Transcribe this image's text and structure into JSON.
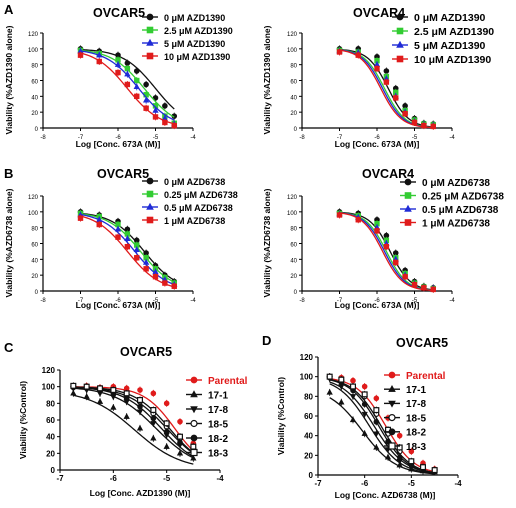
{
  "panels": [
    {
      "letter": "A",
      "charts": [
        0,
        1
      ]
    },
    {
      "letter": "B",
      "charts": [
        2,
        3
      ]
    },
    {
      "letter": "C",
      "charts": [
        4
      ]
    },
    {
      "letter": "D",
      "charts": [
        5
      ]
    }
  ],
  "colors": {
    "black": "#111111",
    "green": "#33cc33",
    "blue": "#1f2bd6",
    "red": "#e01b1b",
    "darkred": "#c0392b"
  },
  "chart_data": [
    {
      "type": "scatter",
      "panel": "A",
      "title": "OVCAR5",
      "xlabel": "Log [Conc. 673A (M)]",
      "ylabel": "Viability (%AZD1390 alone)",
      "xlim": [
        -8,
        -4
      ],
      "ylim": [
        0,
        120
      ],
      "xticks": [
        -8,
        -7,
        -6,
        -5,
        -4
      ],
      "yticks": [
        0,
        20,
        40,
        60,
        80,
        100,
        120
      ],
      "x": [
        -7,
        -6.5,
        -6,
        -5.75,
        -5.5,
        -5.25,
        -5,
        -4.75,
        -4.5
      ],
      "series": [
        {
          "name": "0 μM AZD1390",
          "color": "#111111",
          "marker": "circle",
          "ec50": -5.0,
          "hill": 1.0,
          "top": 100,
          "values": [
            100,
            97,
            92,
            82,
            72,
            55,
            38,
            28,
            15
          ]
        },
        {
          "name": "2.5 μM AZD1390",
          "color": "#33cc33",
          "marker": "square",
          "ec50": -5.3,
          "hill": 1.0,
          "top": 100,
          "values": [
            98,
            94,
            86,
            75,
            60,
            42,
            28,
            15,
            6
          ]
        },
        {
          "name": "5 μM AZD1390",
          "color": "#1f2bd6",
          "marker": "triangle",
          "ec50": -5.45,
          "hill": 1.0,
          "top": 100,
          "values": [
            97,
            92,
            80,
            68,
            52,
            35,
            22,
            12,
            5
          ]
        },
        {
          "name": "10 μM AZD1390",
          "color": "#e01b1b",
          "marker": "square",
          "ec50": -5.75,
          "hill": 1.0,
          "top": 100,
          "values": [
            92,
            84,
            70,
            55,
            40,
            25,
            14,
            7,
            3
          ]
        }
      ]
    },
    {
      "type": "scatter",
      "panel": "A",
      "title": "OVCAR4",
      "xlabel": "Log [Conc. 673A (M)]",
      "ylabel": "Viability (%AZD1390 alone)",
      "xlim": [
        -8,
        -4
      ],
      "ylim": [
        0,
        120
      ],
      "xticks": [
        -8,
        -7,
        -6,
        -5,
        -4
      ],
      "yticks": [
        0,
        20,
        40,
        60,
        80,
        100,
        120
      ],
      "x": [
        -7,
        -6.5,
        -6,
        -5.75,
        -5.5,
        -5.25,
        -5,
        -4.75,
        -4.5
      ],
      "series": [
        {
          "name": "0 μM AZD1390",
          "color": "#111111",
          "marker": "circle",
          "ec50": -5.7,
          "hill": 1.6,
          "top": 100,
          "values": [
            100,
            100,
            90,
            72,
            50,
            28,
            12,
            6,
            5
          ]
        },
        {
          "name": "2.5 μM AZD1390",
          "color": "#33cc33",
          "marker": "square",
          "ec50": -5.8,
          "hill": 1.6,
          "top": 100,
          "values": [
            98,
            96,
            85,
            65,
            45,
            22,
            10,
            5,
            4
          ]
        },
        {
          "name": "5 μM AZD1390",
          "color": "#1f2bd6",
          "marker": "triangle",
          "ec50": -5.85,
          "hill": 1.6,
          "top": 100,
          "values": [
            97,
            95,
            80,
            62,
            40,
            20,
            8,
            4,
            3
          ]
        },
        {
          "name": "10 μM AZD1390",
          "color": "#e01b1b",
          "marker": "square",
          "ec50": -5.9,
          "hill": 1.6,
          "top": 100,
          "values": [
            96,
            92,
            75,
            58,
            38,
            18,
            7,
            3,
            2
          ]
        }
      ]
    },
    {
      "type": "scatter",
      "panel": "B",
      "title": "OVCAR5",
      "xlabel": "Log [Conc. 673A (M)]",
      "ylabel": "Viability (%AZD6738 alone)",
      "xlim": [
        -8,
        -4
      ],
      "ylim": [
        0,
        120
      ],
      "xticks": [
        -8,
        -7,
        -6,
        -5,
        -4
      ],
      "yticks": [
        0,
        20,
        40,
        60,
        80,
        100,
        120
      ],
      "x": [
        -7,
        -6.5,
        -6,
        -5.75,
        -5.5,
        -5.25,
        -5,
        -4.75,
        -4.5
      ],
      "series": [
        {
          "name": "0 μM AZD6738",
          "color": "#111111",
          "marker": "circle",
          "ec50": -5.3,
          "hill": 1.0,
          "top": 100,
          "values": [
            100,
            96,
            88,
            78,
            64,
            48,
            32,
            20,
            12
          ]
        },
        {
          "name": "0.25 μM AZD6738",
          "color": "#33cc33",
          "marker": "square",
          "ec50": -5.4,
          "hill": 1.0,
          "top": 100,
          "values": [
            98,
            94,
            84,
            72,
            58,
            42,
            28,
            17,
            10
          ]
        },
        {
          "name": "0.5 μM AZD6738",
          "color": "#1f2bd6",
          "marker": "triangle",
          "ec50": -5.55,
          "hill": 1.0,
          "top": 100,
          "values": [
            96,
            90,
            78,
            66,
            52,
            36,
            24,
            14,
            8
          ]
        },
        {
          "name": "1 μM AZD6738",
          "color": "#e01b1b",
          "marker": "square",
          "ec50": -5.75,
          "hill": 1.0,
          "top": 100,
          "values": [
            92,
            84,
            68,
            56,
            42,
            28,
            18,
            10,
            6
          ]
        }
      ]
    },
    {
      "type": "scatter",
      "panel": "B",
      "title": "OVCAR4",
      "xlabel": "Log [Conc. 673A (M)]",
      "ylabel": "Viability (%AZD6738 alone)",
      "xlim": [
        -8,
        -4
      ],
      "ylim": [
        0,
        120
      ],
      "xticks": [
        -8,
        -7,
        -6,
        -5,
        -4
      ],
      "yticks": [
        0,
        20,
        40,
        60,
        80,
        100,
        120
      ],
      "x": [
        -7,
        -6.5,
        -6,
        -5.75,
        -5.5,
        -5.25,
        -5,
        -4.75,
        -4.5
      ],
      "series": [
        {
          "name": "0 μM AZD6738",
          "color": "#111111",
          "marker": "circle",
          "ec50": -5.65,
          "hill": 1.6,
          "top": 100,
          "values": [
            100,
            98,
            90,
            70,
            48,
            26,
            12,
            6,
            4
          ]
        },
        {
          "name": "0.25 μM AZD6738",
          "color": "#33cc33",
          "marker": "square",
          "ec50": -5.75,
          "hill": 1.6,
          "top": 100,
          "values": [
            98,
            95,
            85,
            64,
            42,
            22,
            10,
            5,
            3
          ]
        },
        {
          "name": "0.5 μM AZD6738",
          "color": "#1f2bd6",
          "marker": "triangle",
          "ec50": -5.8,
          "hill": 1.6,
          "top": 100,
          "values": [
            97,
            93,
            80,
            60,
            40,
            20,
            9,
            4,
            3
          ]
        },
        {
          "name": "1 μM AZD6738",
          "color": "#e01b1b",
          "marker": "square",
          "ec50": -5.85,
          "hill": 1.6,
          "top": 100,
          "values": [
            96,
            90,
            76,
            56,
            36,
            18,
            8,
            4,
            2
          ]
        }
      ]
    },
    {
      "type": "scatter",
      "panel": "C",
      "title": "OVCAR5",
      "xlabel": "Log [Conc. AZD1390 (M)]",
      "ylabel": "Viability (%Control)",
      "xlim": [
        -7,
        -4
      ],
      "ylim": [
        0,
        120
      ],
      "xticks": [
        -7,
        -6,
        -5,
        -4
      ],
      "yticks": [
        0,
        20,
        40,
        60,
        80,
        100,
        120
      ],
      "x": [
        -6.75,
        -6.5,
        -6.25,
        -6,
        -5.75,
        -5.5,
        -5.25,
        -5,
        -4.75,
        -4.5
      ],
      "series": [
        {
          "name": "Parental",
          "color": "#e01b1b",
          "marker": "circle",
          "ec50": -4.85,
          "hill": 1.5,
          "top": 100,
          "values": [
            100,
            101,
            99,
            100,
            98,
            96,
            92,
            80,
            58,
            32
          ]
        },
        {
          "name": "17-1",
          "color": "#111111",
          "marker": "triangle",
          "ec50": -5.6,
          "hill": 1.0,
          "top": 96,
          "values": [
            92,
            88,
            82,
            75,
            64,
            50,
            38,
            28,
            20,
            14
          ]
        },
        {
          "name": "17-8",
          "color": "#111111",
          "marker": "triangle-down",
          "ec50": -5.2,
          "hill": 1.1,
          "top": 100,
          "values": [
            98,
            96,
            92,
            88,
            82,
            70,
            56,
            42,
            30,
            22
          ]
        },
        {
          "name": "18-5",
          "color": "#111111",
          "marker": "circle-open",
          "ec50": -5.0,
          "hill": 1.2,
          "top": 100,
          "values": [
            100,
            99,
            97,
            95,
            90,
            82,
            68,
            52,
            38,
            26
          ]
        },
        {
          "name": "18-2",
          "color": "#111111",
          "marker": "circle",
          "ec50": -5.1,
          "hill": 1.2,
          "top": 100,
          "values": [
            99,
            98,
            95,
            92,
            86,
            76,
            62,
            46,
            33,
            24
          ]
        },
        {
          "name": "18-3",
          "color": "#111111",
          "marker": "square-open",
          "ec50": -4.95,
          "hill": 1.3,
          "top": 100,
          "values": [
            101,
            100,
            98,
            96,
            92,
            84,
            72,
            56,
            40,
            28
          ]
        }
      ]
    },
    {
      "type": "scatter",
      "panel": "D",
      "title": "OVCAR5",
      "xlabel": "Log [Conc. AZD6738 (M)]",
      "ylabel": "Viability (%Control)",
      "xlim": [
        -7,
        -4
      ],
      "ylim": [
        0,
        120
      ],
      "xticks": [
        -7,
        -6,
        -5,
        -4
      ],
      "yticks": [
        0,
        20,
        40,
        60,
        80,
        100,
        120
      ],
      "x": [
        -6.75,
        -6.5,
        -6.25,
        -6,
        -5.75,
        -5.5,
        -5.25,
        -5,
        -4.75,
        -4.5
      ],
      "series": [
        {
          "name": "Parental",
          "color": "#e01b1b",
          "marker": "circle",
          "ec50": -5.55,
          "hill": 1.4,
          "top": 100,
          "values": [
            100,
            99,
            96,
            90,
            78,
            58,
            40,
            24,
            12,
            6
          ]
        },
        {
          "name": "17-1",
          "color": "#111111",
          "marker": "triangle",
          "ec50": -6.05,
          "hill": 1.2,
          "top": 90,
          "values": [
            84,
            74,
            56,
            42,
            28,
            18,
            10,
            6,
            4,
            3
          ]
        },
        {
          "name": "17-8",
          "color": "#111111",
          "marker": "triangle-down",
          "ec50": -5.9,
          "hill": 1.3,
          "top": 100,
          "values": [
            98,
            90,
            80,
            62,
            42,
            26,
            14,
            8,
            5,
            4
          ]
        },
        {
          "name": "18-5",
          "color": "#111111",
          "marker": "circle-open",
          "ec50": -5.7,
          "hill": 1.4,
          "top": 100,
          "values": [
            100,
            96,
            90,
            80,
            62,
            42,
            24,
            12,
            7,
            5
          ]
        },
        {
          "name": "18-2",
          "color": "#111111",
          "marker": "circle",
          "ec50": -5.8,
          "hill": 1.3,
          "top": 100,
          "values": [
            99,
            94,
            86,
            72,
            54,
            34,
            18,
            10,
            6,
            4
          ]
        },
        {
          "name": "18-3",
          "color": "#111111",
          "marker": "square-open",
          "ec50": -5.65,
          "hill": 1.4,
          "top": 100,
          "values": [
            100,
            97,
            90,
            82,
            66,
            46,
            28,
            14,
            8,
            5
          ]
        }
      ]
    }
  ]
}
